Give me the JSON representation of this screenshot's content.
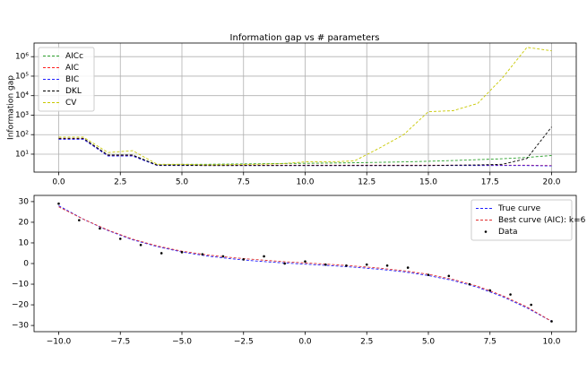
{
  "chart_data": [
    {
      "type": "line",
      "title": "Information gap vs # parameters",
      "y_label": "Information gap",
      "yscale": "log",
      "grid": true,
      "legend": "upper-left",
      "x": [
        0,
        1,
        2,
        3,
        4,
        5,
        6,
        7,
        8,
        9,
        10,
        11,
        12,
        13,
        14,
        15,
        16,
        17,
        18,
        19,
        20
      ],
      "xlim": [
        -1,
        21
      ],
      "xticks": [
        {
          "value": 0,
          "label": "0.0"
        },
        {
          "value": 2.5,
          "label": "2.5"
        },
        {
          "value": 5,
          "label": "5.0"
        },
        {
          "value": 7.5,
          "label": "7.5"
        },
        {
          "value": 10,
          "label": "10.0"
        },
        {
          "value": 12.5,
          "label": "12.5"
        },
        {
          "value": 15,
          "label": "15.0"
        },
        {
          "value": 17.5,
          "label": "17.5"
        },
        {
          "value": 20,
          "label": "20.0"
        }
      ],
      "ylim": [
        1.2,
        5000000
      ],
      "yticks": [
        {
          "value": 10,
          "label": "10¹"
        },
        {
          "value": 100,
          "label": "10²"
        },
        {
          "value": 1000,
          "label": "10³"
        },
        {
          "value": 10000,
          "label": "10⁴"
        },
        {
          "value": 100000,
          "label": "10⁵"
        },
        {
          "value": 1000000,
          "label": "10⁶"
        }
      ],
      "series": [
        {
          "name": "AICc",
          "color": "#2ca02c",
          "style": "dashed",
          "values": [
            62,
            62,
            9,
            9,
            2.8,
            3,
            3,
            3.1,
            3.2,
            3.3,
            3.4,
            3.5,
            3.6,
            3.8,
            4,
            4.3,
            4.7,
            5.2,
            5.8,
            6.8,
            8.5
          ]
        },
        {
          "name": "AIC",
          "color": "#ff2020",
          "style": "dashed",
          "values": [
            60,
            60,
            8.5,
            8.5,
            2.7,
            2.7,
            2.7,
            2.7,
            2.7,
            2.7,
            2.7,
            2.7,
            2.7,
            2.7,
            2.7,
            2.7,
            2.7,
            2.7,
            2.7,
            2.7,
            2.6
          ]
        },
        {
          "name": "BIC",
          "color": "#2020ff",
          "style": "dashed",
          "values": [
            58,
            58,
            8,
            8,
            2.6,
            2.6,
            2.6,
            2.6,
            2.6,
            2.6,
            2.6,
            2.6,
            2.6,
            2.6,
            2.6,
            2.6,
            2.6,
            2.6,
            2.6,
            2.6,
            2.5
          ]
        },
        {
          "name": "DKL",
          "color": "#000000",
          "style": "dashed",
          "values": [
            65,
            65,
            9,
            9,
            2.7,
            2.7,
            2.6,
            2.6,
            2.6,
            2.6,
            2.6,
            2.6,
            2.6,
            2.6,
            2.6,
            2.6,
            2.7,
            2.8,
            3,
            6,
            250
          ]
        },
        {
          "name": "CV",
          "color": "#c8c800",
          "style": "dashed",
          "values": [
            75,
            75,
            12,
            15,
            3,
            3,
            2.8,
            2.9,
            3,
            3.2,
            4,
            4,
            4.5,
            20,
            100,
            1500,
            1700,
            4000,
            80000,
            3000000,
            2000000
          ]
        }
      ]
    },
    {
      "type": "line",
      "grid": false,
      "legend": "upper-right",
      "xlim": [
        -11,
        11
      ],
      "xticks": [
        {
          "value": -10,
          "label": "−10.0"
        },
        {
          "value": -7.5,
          "label": "−7.5"
        },
        {
          "value": -5,
          "label": "−5.0"
        },
        {
          "value": -2.5,
          "label": "−2.5"
        },
        {
          "value": 0,
          "label": "0.0"
        },
        {
          "value": 2.5,
          "label": "2.5"
        },
        {
          "value": 5,
          "label": "5.0"
        },
        {
          "value": 7.5,
          "label": "7.5"
        },
        {
          "value": 10,
          "label": "10.0"
        }
      ],
      "ylim": [
        -33,
        33
      ],
      "yticks": [
        {
          "value": -30,
          "label": "−30"
        },
        {
          "value": -20,
          "label": "−20"
        },
        {
          "value": -10,
          "label": "−10"
        },
        0,
        10,
        20,
        30
      ],
      "series": [
        {
          "name": "True curve",
          "color": "#2020ff",
          "style": "dashed",
          "x": [
            -10,
            -9,
            -8,
            -7,
            -6,
            -5,
            -4,
            -3,
            -2,
            -1,
            0,
            1,
            2,
            3,
            4,
            5,
            6,
            7,
            8,
            9,
            10
          ],
          "values": [
            28,
            21.5,
            16,
            11.5,
            8.2,
            5.6,
            3.7,
            2.3,
            1.2,
            0.4,
            -0.3,
            -1,
            -1.8,
            -2.8,
            -4,
            -5.8,
            -8.2,
            -11.5,
            -16,
            -21.5,
            -28
          ]
        },
        {
          "name": "Best curve (AIC): k=6",
          "color": "#e03030",
          "style": "dashed",
          "x": [
            -10,
            -9,
            -8,
            -7,
            -6,
            -5,
            -4,
            -3,
            -2,
            -1,
            0,
            1,
            2,
            3,
            4,
            5,
            6,
            7,
            8,
            9,
            10
          ],
          "values": [
            27.5,
            21.5,
            16.2,
            11.8,
            8.5,
            6,
            4.2,
            2.9,
            1.9,
            1,
            0.3,
            -0.4,
            -1.2,
            -2.2,
            -3.5,
            -5.2,
            -7.7,
            -11,
            -15.5,
            -21,
            -28
          ]
        },
        {
          "name": "Data",
          "color": "#000000",
          "style": "points",
          "x": [
            -10,
            -9.17,
            -8.33,
            -7.5,
            -6.67,
            -5.83,
            -5,
            -4.17,
            -3.33,
            -2.5,
            -1.67,
            -0.83,
            0,
            0.83,
            1.67,
            2.5,
            3.33,
            4.17,
            5,
            5.83,
            6.67,
            7.5,
            8.33,
            9.17,
            10
          ],
          "values": [
            29,
            21,
            17,
            12,
            9,
            5,
            5.5,
            4.5,
            3.5,
            2,
            3.5,
            0,
            1,
            -0.5,
            -1,
            -0.5,
            -1,
            -2,
            -5.5,
            -6,
            -10,
            -13,
            -15,
            -20,
            -28
          ]
        }
      ]
    }
  ]
}
